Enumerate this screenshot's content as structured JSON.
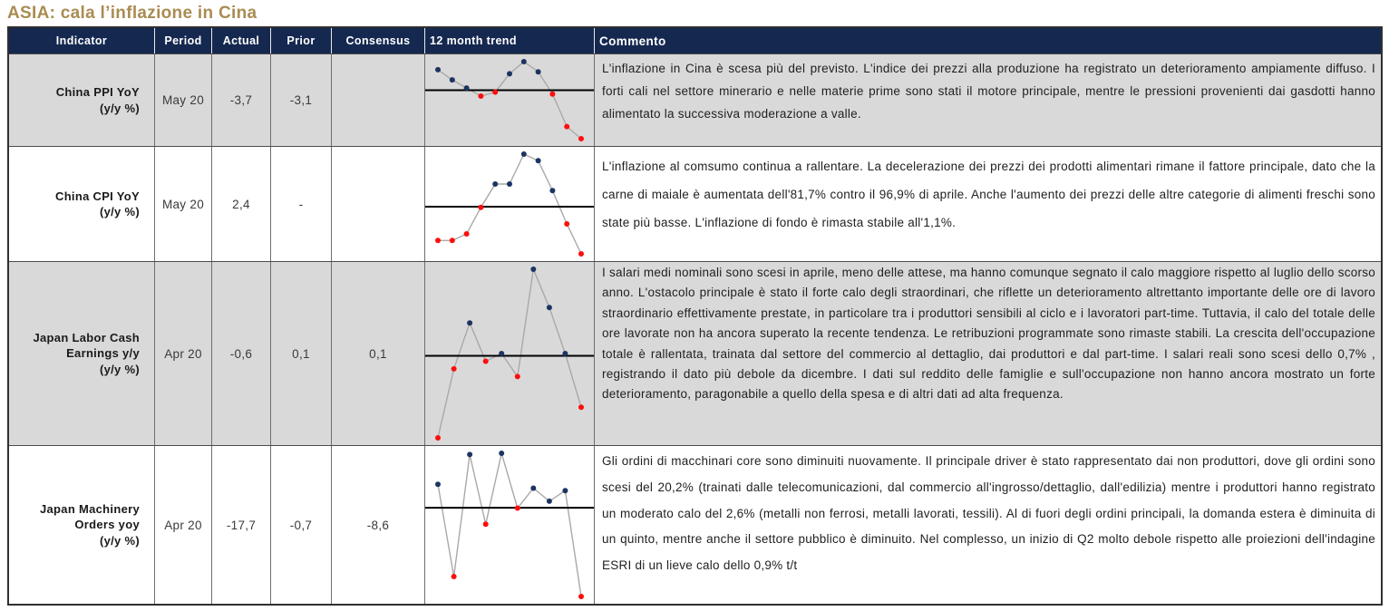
{
  "title": "ASIA: cala l’inflazione in Cina",
  "colors": {
    "title_gold": "#aa8c52",
    "header_navy": "#152850",
    "row_alt_gray": "#d9d9d9",
    "dot_above_mean": "#1c3461",
    "dot_below_mean": "#ff0d0d",
    "spark_line": "#a9a9a9",
    "mean_line": "#000000"
  },
  "table": {
    "headers": [
      "Indicator",
      "Period",
      "Actual",
      "Prior",
      "Consensus",
      "12 month trend",
      "Commento"
    ],
    "rows": [
      {
        "indicator": "China PPI YoY",
        "indicator_unit": "(y/y %)",
        "period": "May 20",
        "actual": "-3,7",
        "prior": "-3,1",
        "consensus": "",
        "comment": "L'inflazione in Cina è scesa più del previsto. L'indice dei prezzi alla produzione ha registrato un deterioramento ampiamente diffuso. I forti cali nel settore minerario e nelle materie prime sono stati il motore principale, mentre le pressioni provenienti dai gasdotti hanno alimentato la successiva moderazione a valle."
      },
      {
        "indicator": "China CPI YoY",
        "indicator_unit": "(y/y %)",
        "period": "May 20",
        "actual": "2,4",
        "prior": "-",
        "consensus": "",
        "comment": "L'inflazione al comsumo continua a rallentare. La decelerazione dei prezzi dei prodotti alimentari rimane il fattore principale, dato che la carne di maiale è aumentata dell'81,7% contro il 96,9% di aprile. Anche l'aumento dei prezzi delle altre categorie di alimenti freschi sono state più basse. L'inflazione di fondo è rimasta stabile all'1,1%."
      },
      {
        "indicator": "Japan Labor Cash Earnings y/y",
        "indicator_unit": "(y/y %)",
        "period": "Apr 20",
        "actual": "-0,6",
        "prior": "0,1",
        "consensus": "0,1",
        "comment": "I salari medi nominali sono scesi in aprile, meno delle attese, ma hanno comunque segnato il calo maggiore rispetto al luglio dello scorso anno. L'ostacolo principale è stato il forte calo degli straordinari, che riflette un deterioramento altrettanto importante delle ore di lavoro straordinario effettivamente prestate, in particolare tra i produttori sensibili al ciclo e i lavoratori part-time. Tuttavia, il calo del totale delle ore lavorate non ha ancora superato la recente tendenza. Le retribuzioni programmate sono rimaste stabili. La crescita dell'occupazione totale è rallentata, trainata dal settore del commercio al dettaglio, dai produttori e dal part-time. I salari reali sono scesi dello 0,7% , registrando il dato più debole da dicembre. I dati sul reddito delle famiglie e sull'occupazione non hanno ancora mostrato un forte deterioramento, paragonabile a quello della spesa e di altri dati ad alta frequenza."
      },
      {
        "indicator": "Japan Machinery Orders yoy",
        "indicator_unit": "(y/y %)",
        "period": "Apr 20",
        "actual": "-17,7",
        "prior": "-0,7",
        "consensus": "-8,6",
        "comment": "Gli ordini di macchinari core sono diminuiti nuovamente. Il principale driver è stato rappresentato dai non produttori, dove gli ordini sono scesi del 20,2% (trainati dalle telecomunicazioni, dal commercio all'ingrosso/dettaglio, dall'edilizia) mentre i produttori hanno registrato un moderato calo del 2,6% (metalli non ferrosi, metalli lavorati, tessili). Al di fuori degli ordini principali, la domanda estera è diminuita di un quinto, mentre anche il settore pubblico è diminuito. Nel complesso, un inizio di Q2 molto debole rispetto alle proiezioni dell'indagine ESRI di un lieve calo dello 0,9% t/t"
      }
    ]
  },
  "chart_data": [
    {
      "type": "line",
      "name": "China PPI YoY 12 month trend",
      "values": [
        -0.3,
        -0.8,
        -1.2,
        -1.6,
        -1.4,
        -0.5,
        0.1,
        -0.4,
        -1.5,
        -3.1,
        -3.7
      ],
      "baseline": "mean",
      "note": "sparkline; black horizontal line = period mean; dots navy above mean, red below mean"
    },
    {
      "type": "line",
      "name": "China CPI YoY 12 month trend",
      "values": [
        2.8,
        2.8,
        3.0,
        3.8,
        4.5,
        4.5,
        5.4,
        5.2,
        4.3,
        3.3,
        2.4
      ],
      "baseline": "mean",
      "note": "sparkline; black horizontal line = period mean; dots navy above mean, red below mean"
    },
    {
      "type": "line",
      "name": "Japan Labor Cash Earnings y/y 12 month trend",
      "values": [
        -1.0,
        -0.1,
        0.5,
        0.0,
        0.1,
        -0.2,
        1.2,
        0.7,
        0.1,
        -0.6
      ],
      "baseline": "mean",
      "note": "sparkline; black horizontal line = period mean; dots navy above mean, red below mean"
    },
    {
      "type": "line",
      "name": "Japan Machinery Orders yoy 12 month trend",
      "values": [
        0.3,
        -14.5,
        5.1,
        -6.1,
        5.3,
        -3.5,
        -0.3,
        -2.4,
        -0.7,
        -17.7
      ],
      "baseline": "mean",
      "note": "sparkline; black horizontal line = period mean; dots navy above mean, red below mean"
    }
  ]
}
